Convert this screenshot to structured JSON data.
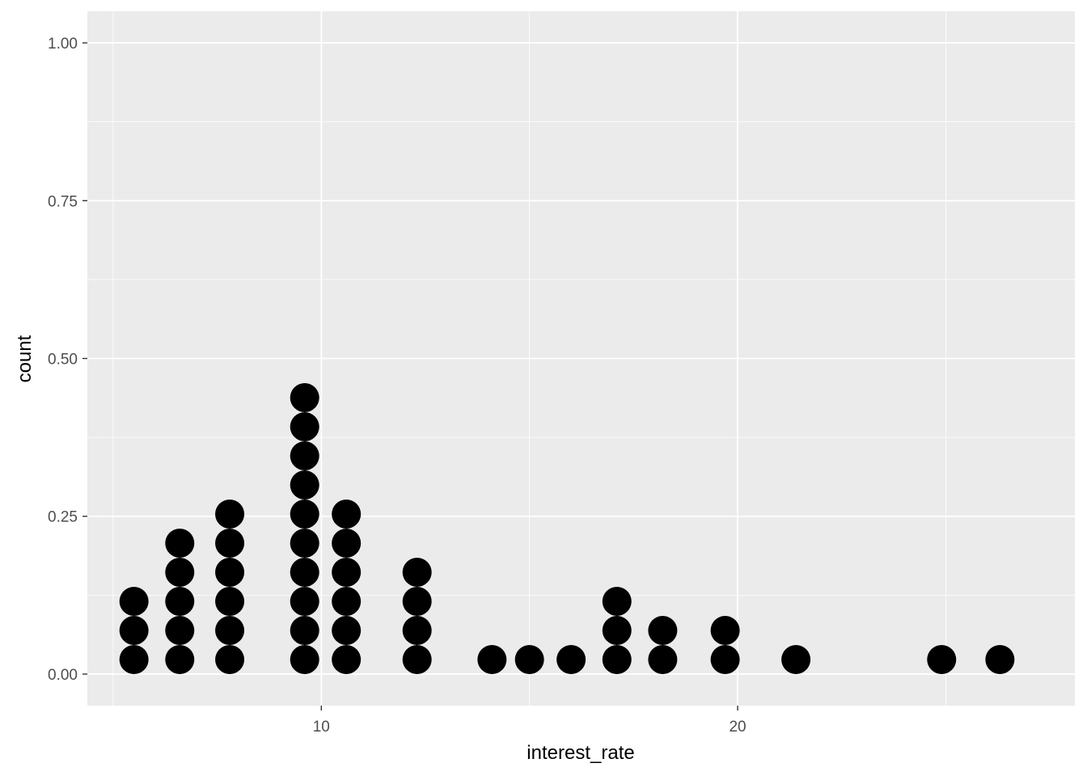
{
  "chart_data": {
    "type": "dotplot",
    "xlabel": "interest_rate",
    "ylabel": "count",
    "xlim": [
      4.38,
      28.1
    ],
    "ylim": [
      -0.05,
      1.05
    ],
    "x_ticks": [
      10,
      20
    ],
    "x_tick_labels": [
      "10",
      "20"
    ],
    "y_ticks": [
      0.0,
      0.25,
      0.5,
      0.75,
      1.0
    ],
    "y_tick_labels": [
      "0.00",
      "0.25",
      "0.50",
      "0.75",
      "1.00"
    ],
    "grid": true,
    "legend": "none",
    "stacks": [
      {
        "x": 5.5,
        "count": 3
      },
      {
        "x": 6.6,
        "count": 5
      },
      {
        "x": 7.8,
        "count": 6
      },
      {
        "x": 9.6,
        "count": 10
      },
      {
        "x": 10.6,
        "count": 6
      },
      {
        "x": 12.3,
        "count": 4
      },
      {
        "x": 14.1,
        "count": 1
      },
      {
        "x": 15.0,
        "count": 1
      },
      {
        "x": 16.0,
        "count": 1
      },
      {
        "x": 17.1,
        "count": 3
      },
      {
        "x": 18.2,
        "count": 2
      },
      {
        "x": 19.7,
        "count": 2
      },
      {
        "x": 21.4,
        "count": 1
      },
      {
        "x": 24.9,
        "count": 1
      },
      {
        "x": 26.3,
        "count": 1
      }
    ],
    "dot_color": "#000000",
    "panel_color": "#EBEBEB",
    "grid_color": "#FFFFFF"
  }
}
